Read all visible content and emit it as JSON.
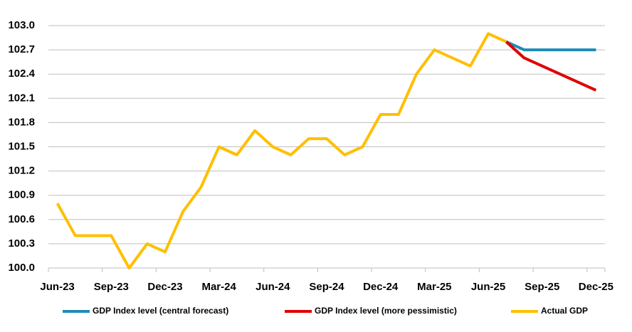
{
  "chart_data": {
    "type": "line",
    "categories": [
      "Jun-23",
      null,
      null,
      "Sep-23",
      null,
      null,
      "Dec-23",
      null,
      null,
      "Mar-24",
      null,
      null,
      "Jun-24",
      null,
      null,
      "Sep-24",
      null,
      null,
      "Dec-24",
      null,
      null,
      "Mar-25",
      null,
      null,
      "Jun-25",
      null,
      null,
      "Sep-25",
      null,
      null,
      "Dec-25"
    ],
    "series": [
      {
        "name": "GDP Index level (central forecast)",
        "color": "#1f8bb5",
        "values": [
          null,
          null,
          null,
          null,
          null,
          null,
          null,
          null,
          null,
          null,
          null,
          null,
          null,
          null,
          null,
          null,
          null,
          null,
          null,
          null,
          null,
          null,
          null,
          null,
          null,
          102.8,
          102.7,
          102.7,
          102.7,
          102.7,
          102.7
        ]
      },
      {
        "name": "GDP Index level (more pessimistic)",
        "color": "#e00000",
        "values": [
          null,
          null,
          null,
          null,
          null,
          null,
          null,
          null,
          null,
          null,
          null,
          null,
          null,
          null,
          null,
          null,
          null,
          null,
          null,
          null,
          null,
          null,
          null,
          null,
          null,
          102.8,
          102.6,
          102.5,
          102.4,
          102.3,
          102.2
        ]
      },
      {
        "name": "Actual GDP",
        "color": "#ffbf00",
        "values": [
          100.8,
          100.4,
          100.4,
          100.4,
          100.0,
          100.3,
          100.2,
          100.7,
          101.0,
          101.5,
          101.4,
          101.7,
          101.5,
          101.4,
          101.6,
          101.6,
          101.4,
          101.5,
          101.9,
          101.9,
          102.4,
          102.7,
          102.6,
          102.5,
          102.9,
          102.8,
          null,
          null,
          null,
          null,
          null
        ]
      }
    ],
    "ylim": [
      100.0,
      103.0
    ],
    "yticks": [
      {
        "value": 100.0,
        "label": "100.0"
      },
      100.3,
      100.6,
      100.9,
      101.2,
      101.5,
      101.8,
      102.1,
      102.4,
      102.7,
      {
        "value": 103.0,
        "label": "103.0"
      }
    ],
    "grid": true
  }
}
